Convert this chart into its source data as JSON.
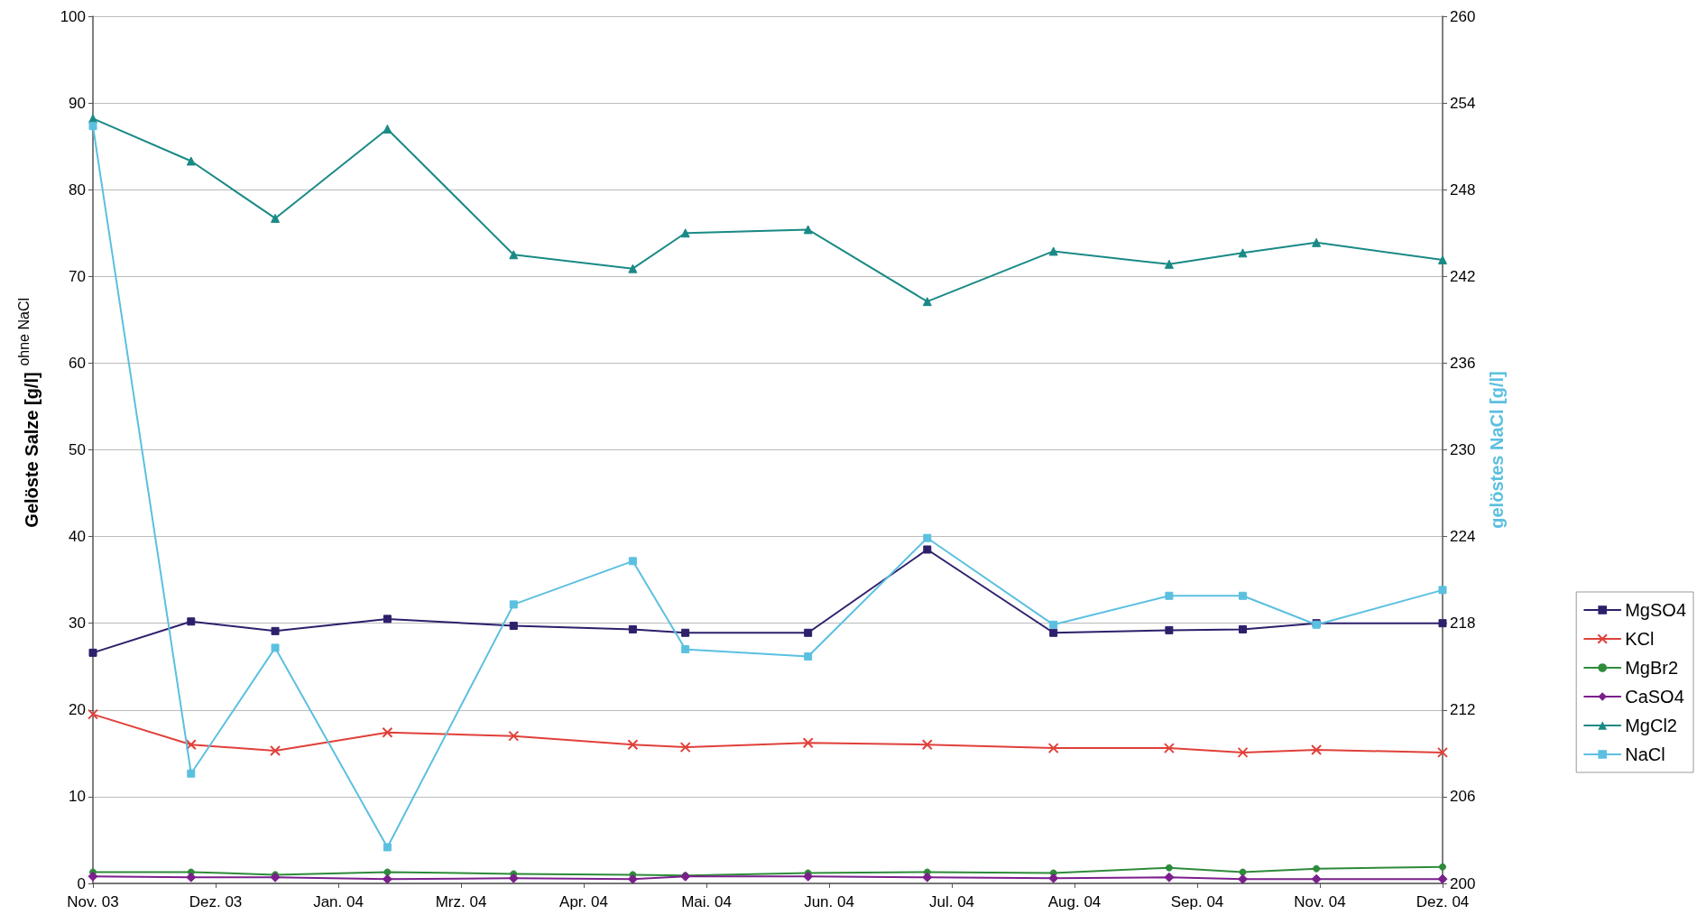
{
  "chart_data": {
    "type": "line",
    "ylabel": "Gelöste Salze [g/l]",
    "y2label": "gelöstes NaCl [g/l]",
    "annotations": [
      "ohne NaCl"
    ],
    "x": [
      "2003-11-18",
      "2003-12-16",
      "2004-01-09",
      "2004-02-10",
      "2004-03-17",
      "2004-04-20",
      "2004-05-05",
      "2004-06-09",
      "2004-07-13",
      "2004-08-18",
      "2004-09-20",
      "2004-10-11",
      "2004-11-01",
      "2004-12-07"
    ],
    "xlim": [
      "2003-11-18",
      "2004-12-07"
    ],
    "xticks": [
      {
        "value": "2003-11-18",
        "label": "Nov. 03"
      },
      {
        "value": "2003-12-23",
        "label": "Dez. 03"
      },
      {
        "value": "2004-01-27",
        "label": "Jan. 04"
      },
      {
        "value": "2004-03-02",
        "label": "Mrz. 04"
      },
      {
        "value": "2004-04-06",
        "label": "Apr. 04"
      },
      {
        "value": "2004-05-11",
        "label": "Mai. 04"
      },
      {
        "value": "2004-06-15",
        "label": "Jun. 04"
      },
      {
        "value": "2004-07-20",
        "label": "Jul. 04"
      },
      {
        "value": "2004-08-24",
        "label": "Aug. 04"
      },
      {
        "value": "2004-09-28",
        "label": "Sep. 04"
      },
      {
        "value": "2004-11-02",
        "label": "Nov. 04"
      },
      {
        "value": "2004-12-07",
        "label": "Dez. 04"
      }
    ],
    "ylim": [
      0,
      100
    ],
    "yticks": [
      0,
      10,
      20,
      30,
      40,
      50,
      60,
      70,
      80,
      90,
      100
    ],
    "y2lim": [
      200,
      260
    ],
    "y2ticks": [
      200,
      206,
      212,
      218,
      224,
      230,
      236,
      242,
      248,
      254,
      260
    ],
    "grid": "y",
    "legend": "right",
    "line_style": "solid",
    "series": [
      {
        "name": "MgSO4",
        "color": "#2e1f6b",
        "marker": "square",
        "values": [
          26.6,
          30.2,
          29.1,
          30.5,
          29.7,
          29.3,
          28.9,
          28.9,
          38.5,
          28.9,
          29.2,
          29.3,
          30.0,
          30.0
        ]
      },
      {
        "name": "KCl",
        "color": "#e0403a",
        "marker": "cross",
        "values": [
          19.5,
          16.0,
          15.3,
          17.4,
          17.0,
          16.0,
          15.7,
          16.2,
          16.0,
          15.6,
          15.6,
          15.1,
          15.4,
          15.1
        ]
      },
      {
        "name": "MgBr2",
        "color": "#2e8b3a",
        "marker": "circle",
        "values": [
          1.3,
          1.3,
          1.0,
          1.3,
          1.1,
          1.0,
          0.9,
          1.2,
          1.3,
          1.2,
          1.8,
          1.3,
          1.7,
          1.9
        ]
      },
      {
        "name": "CaSO4",
        "color": "#7b1f8c",
        "marker": "diamond",
        "values": [
          0.8,
          0.7,
          0.7,
          0.5,
          0.6,
          0.5,
          0.8,
          0.8,
          0.7,
          0.6,
          0.7,
          0.5,
          0.5,
          0.5
        ]
      },
      {
        "name": "MgCl2",
        "color": "#1a8a86",
        "marker": "triangle",
        "values": [
          88.2,
          83.3,
          76.7,
          87.0,
          72.5,
          70.9,
          75.0,
          75.4,
          67.1,
          72.9,
          71.4,
          72.7,
          73.9,
          71.9
        ]
      },
      {
        "name": "NaCl",
        "color": "#5bc0e0",
        "marker": "square",
        "axis": "y2",
        "values": [
          252.4,
          207.6,
          216.3,
          202.5,
          219.3,
          222.3,
          216.2,
          215.7,
          223.9,
          217.9,
          219.9,
          219.9,
          217.9,
          220.3
        ]
      }
    ]
  }
}
